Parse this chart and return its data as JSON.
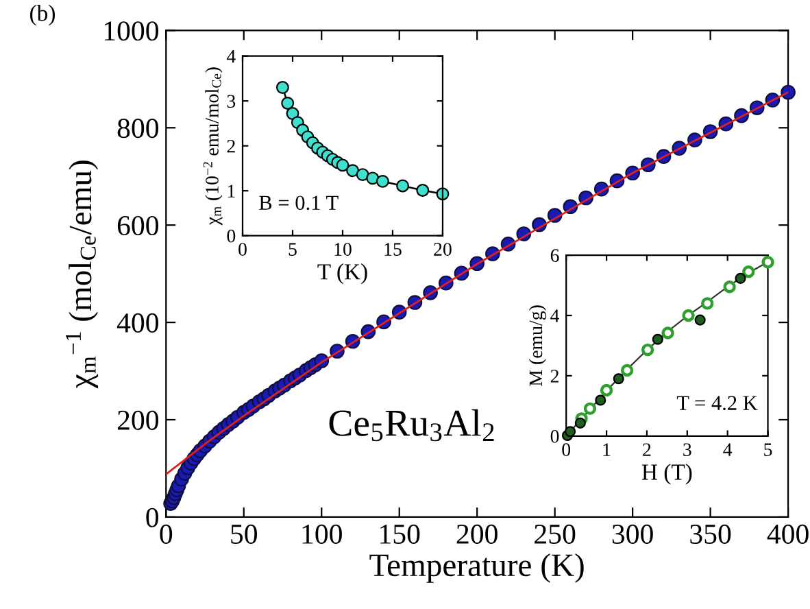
{
  "chart_data": [
    {
      "type": "scatter",
      "xlabel": "Temperature (K)",
      "ylabel": "χ$_{m}$$^{−1}$ (mol$_{Ce}$/emu)",
      "xlim": [
        0,
        400
      ],
      "ylim": [
        0,
        1000
      ],
      "xticks": [
        0,
        50,
        100,
        150,
        200,
        250,
        300,
        350,
        400
      ],
      "yticks": [
        0,
        200,
        400,
        600,
        800,
        1000
      ],
      "grid": false,
      "legend": false,
      "annotations": [
        "(b)",
        "Ce$_{5}$Ru$_{3}$Al$_{2}$"
      ],
      "series": [
        {
          "marker": "circle",
          "color": "#1a1ab4",
          "x": [
            3,
            4,
            5,
            6,
            7,
            8,
            10,
            12,
            14,
            16,
            18,
            20,
            22,
            25,
            28,
            31,
            34,
            37,
            40,
            43,
            46,
            50,
            53,
            56,
            60,
            63,
            66,
            70,
            73,
            76,
            80,
            83,
            86,
            90,
            93,
            96,
            100,
            110,
            120,
            130,
            140,
            150,
            160,
            170,
            180,
            190,
            200,
            210,
            220,
            230,
            240,
            250,
            260,
            270,
            280,
            290,
            300,
            310,
            320,
            330,
            340,
            350,
            360,
            370,
            380,
            390,
            400
          ],
          "values": [
            28,
            33,
            40,
            48,
            56,
            64,
            78,
            90,
            101,
            111,
            120,
            128,
            136,
            146,
            156,
            165,
            174,
            182,
            190,
            197,
            205,
            215,
            221,
            228,
            237,
            243,
            250,
            259,
            265,
            271,
            280,
            286,
            292,
            301,
            307,
            313,
            321,
            341,
            361,
            381,
            401,
            421,
            441,
            461,
            481,
            501,
            521,
            541,
            561,
            582,
            601,
            620,
            638,
            656,
            674,
            691,
            707,
            724,
            741,
            758,
            775,
            792,
            808,
            825,
            841,
            857,
            873
          ]
        },
        {
          "type": "line",
          "marker": "none",
          "color": "#e0201a",
          "x": [
            0,
            25,
            50,
            100,
            200,
            300,
            400
          ],
          "values": [
            88,
            150,
            208,
            318,
            520,
            707,
            873
          ]
        }
      ]
    },
    {
      "type": "line",
      "xlabel": "T (K)",
      "ylabel": "χ$_{m}$ (10$^{−2}$ emu/mol$_{Ce}$)",
      "xlim": [
        0,
        20
      ],
      "ylim": [
        0,
        4
      ],
      "xticks": [
        0,
        5,
        10,
        15,
        20
      ],
      "yticks": [
        0,
        1,
        2,
        3,
        4
      ],
      "grid": false,
      "legend": false,
      "marker": "circle",
      "annotations": [
        "B = 0.1 T"
      ],
      "series": [
        {
          "color": "#40e0d0",
          "x": [
            4,
            4.5,
            5,
            5.5,
            6,
            6.5,
            7,
            7.5,
            8,
            8.5,
            9,
            9.5,
            10,
            11,
            12,
            13,
            14,
            16,
            18,
            20
          ],
          "values": [
            3.3,
            2.95,
            2.72,
            2.52,
            2.35,
            2.2,
            2.07,
            1.95,
            1.86,
            1.78,
            1.7,
            1.63,
            1.57,
            1.45,
            1.36,
            1.28,
            1.21,
            1.11,
            1.01,
            0.93
          ]
        }
      ]
    },
    {
      "type": "scatter",
      "xlabel": "H (T)",
      "ylabel": "M (emu/g)",
      "xlim": [
        0,
        5
      ],
      "ylim": [
        0,
        6
      ],
      "xticks": [
        0,
        1,
        2,
        3,
        4,
        5
      ],
      "yticks": [
        0,
        2,
        4,
        6
      ],
      "grid": false,
      "legend": false,
      "annotations": [
        "T = 4.2 K"
      ],
      "series": [
        {
          "type": "line",
          "marker": "none",
          "color": "#333333",
          "x": [
            0,
            0.5,
            1,
            1.5,
            2,
            2.5,
            3,
            3.5,
            4,
            4.5,
            4.9
          ],
          "values": [
            0,
            0.75,
            1.5,
            2.2,
            2.85,
            3.45,
            3.98,
            4.45,
            4.95,
            5.4,
            5.7
          ]
        },
        {
          "marker": "circle",
          "color": "#2e9e2e",
          "x": [
            0.38,
            0.59,
            1.0,
            1.51,
            2.02,
            2.52,
            3.03,
            3.5,
            4.05,
            4.52,
            5.0
          ],
          "values": [
            0.58,
            0.91,
            1.52,
            2.18,
            2.86,
            3.42,
            4.0,
            4.4,
            4.95,
            5.45,
            5.77
          ]
        },
        {
          "marker": "circle",
          "color": "#1e5e1e",
          "x": [
            0.03,
            0.1,
            0.35,
            0.85,
            1.3,
            2.27,
            3.32,
            4.32
          ],
          "values": [
            0.02,
            0.15,
            0.43,
            1.19,
            1.9,
            3.21,
            3.85,
            5.23
          ]
        }
      ]
    }
  ]
}
